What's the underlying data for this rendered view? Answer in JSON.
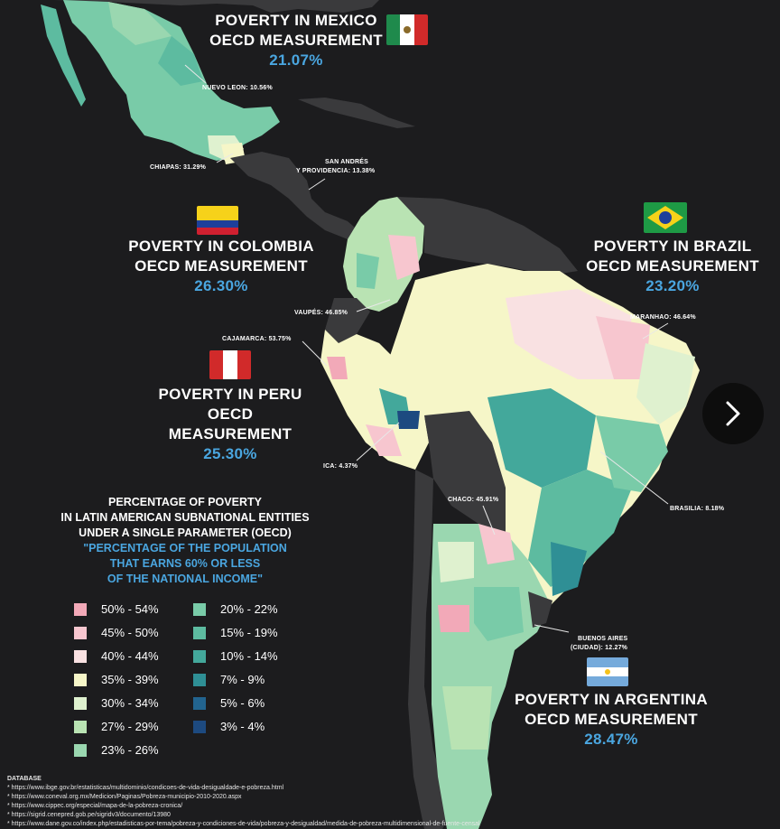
{
  "countries": {
    "mexico": {
      "line1": "POVERTY IN MEXICO",
      "line2": "OECD MEASUREMENT",
      "value": "21.07%"
    },
    "colombia": {
      "line1": "POVERTY IN COLOMBIA",
      "line2": "OECD MEASUREMENT",
      "value": "26.30%"
    },
    "brazil": {
      "line1": "POVERTY IN BRAZIL",
      "line2": "OECD MEASUREMENT",
      "value": "23.20%"
    },
    "peru": {
      "line1": "POVERTY IN PERU",
      "line2": "OECD MEASUREMENT",
      "value": "25.30%"
    },
    "argentina": {
      "line1": "POVERTY IN ARGENTINA",
      "line2": "OECD MEASUREMENT",
      "value": "28.47%"
    }
  },
  "regions": {
    "nuevo_leon": "NUEVO LEON: 10.56%",
    "chiapas": "CHIAPAS: 31.29%",
    "san_andres_1": "SAN ANDRÉS",
    "san_andres_2": "Y PROVIDENCIA: 13.38%",
    "vaupes": "VAUPÉS: 46.85%",
    "cajamarca": "CAJAMARCA: 53.75%",
    "ica": "ICA: 4.37%",
    "maranhao": "MARANHAO: 46.64%",
    "brasilia": "BRASILIA: 8.18%",
    "chaco": "CHACO: 45.91%",
    "buenos_aires_1": "BUENOS AIRES",
    "buenos_aires_2": "(CIUDAD): 12.27%"
  },
  "legend": {
    "title1": "PERCENTAGE OF POVERTY",
    "title2": "IN LATIN AMERICAN SUBNATIONAL ENTITIES",
    "title3": "UNDER A SINGLE PARAMETER (OECD)",
    "sub1": "\"PERCENTAGE OF THE POPULATION",
    "sub2": "THAT EARNS 60% OR LESS",
    "sub3": "OF THE NATIONAL INCOME\"",
    "left": [
      {
        "label": "50% - 54%",
        "color": "#f2a9b8"
      },
      {
        "label": "45% - 50%",
        "color": "#f7c6cf"
      },
      {
        "label": "40% - 44%",
        "color": "#f9e1e2"
      },
      {
        "label": "35% - 39%",
        "color": "#f6f6c8"
      },
      {
        "label": "30% - 34%",
        "color": "#dff1cf"
      },
      {
        "label": "27% - 29%",
        "color": "#b9e3b3"
      },
      {
        "label": "23% - 26%",
        "color": "#9ad7b0"
      }
    ],
    "right": [
      {
        "label": "20% - 22%",
        "color": "#79cba8"
      },
      {
        "label": "15% - 19%",
        "color": "#5dbba0"
      },
      {
        "label": "10% - 14%",
        "color": "#43a89b"
      },
      {
        "label": "7% - 9%",
        "color": "#2f8f95"
      },
      {
        "label": "5% - 6%",
        "color": "#22648f"
      },
      {
        "label": "3% - 4%",
        "color": "#1d4a80"
      }
    ]
  },
  "database": {
    "header": "DATABASE",
    "lines": [
      "* https://www.ibge.gov.br/estatisticas/multidominio/condicoes-de-vida-desigualdade-e-pobreza.html",
      "* https://www.coneval.org.mx/Medicion/Paginas/Pobreza-municipio-2010-2020.aspx",
      "* https://www.cippec.org/especial/mapa-de-la-pobreza-cronica/",
      "* https://sigrid.cenepred.gob.pe/sigridv3/documento/13980",
      "* https://www.dane.gov.co/index.php/estadisticas-por-tema/pobreza-y-condiciones-de-vida/pobreza-y-desigualdad/medida-de-pobreza-multidimensional-de-fuente-censal"
    ]
  },
  "colors": {
    "background": "#1c1c1e",
    "land_other": "#3a3a3c",
    "accent": "#4aa6e0"
  },
  "icons": {
    "next": "chevron-right-icon"
  }
}
